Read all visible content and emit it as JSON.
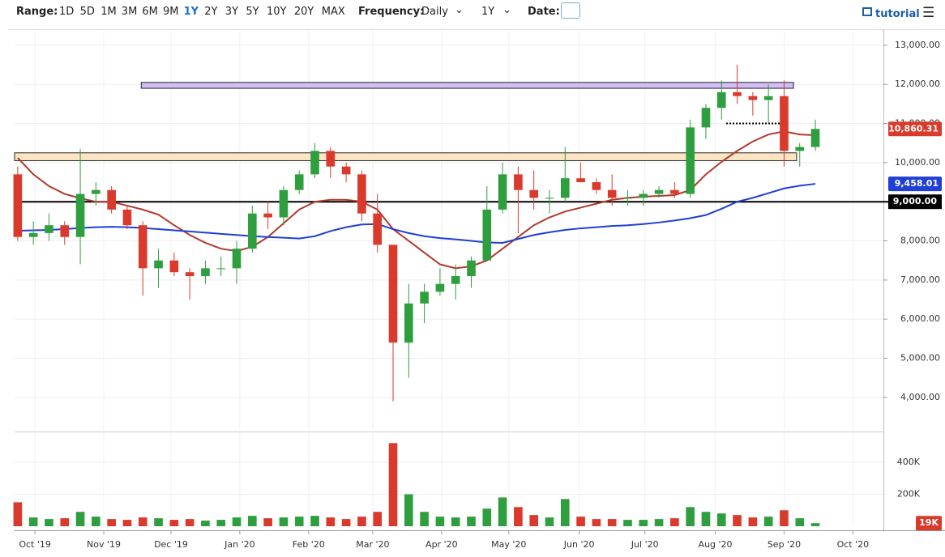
{
  "toolbar": {
    "range_label": "Range:",
    "ranges": [
      "1D",
      "5D",
      "1M",
      "3M",
      "6M",
      "9M",
      "1Y",
      "2Y",
      "3Y",
      "5Y",
      "10Y",
      "20Y",
      "MAX"
    ],
    "selected_range": "1Y",
    "frequency_label": "Frequency:",
    "frequency": "Daily",
    "period": "1Y",
    "date_label": "Date:",
    "tutorial": "tutorial"
  },
  "chart_data": {
    "type": "candlestick",
    "x": [
      0,
      1,
      2,
      3,
      4,
      5,
      6,
      7,
      8,
      9,
      10,
      11,
      12,
      13,
      14,
      15,
      16,
      17,
      18,
      19,
      20,
      21,
      22,
      23,
      24,
      25,
      26,
      27,
      28,
      29,
      30,
      31,
      32,
      33,
      34,
      35,
      36,
      37,
      38,
      39,
      40,
      41,
      42,
      43,
      44,
      45,
      46,
      47,
      48,
      49,
      50,
      51
    ],
    "open": [
      9700,
      8100,
      8200,
      8400,
      8100,
      9200,
      9300,
      8800,
      8400,
      7300,
      7500,
      7200,
      7100,
      7300,
      7300,
      7800,
      8700,
      8600,
      9300,
      9700,
      10300,
      9900,
      9700,
      8700,
      7900,
      5400,
      6400,
      6700,
      6900,
      7100,
      7500,
      8800,
      9700,
      9300,
      9100,
      9100,
      9600,
      9500,
      9300,
      9100,
      9100,
      9200,
      9300,
      9200,
      10900,
      11400,
      11800,
      11700,
      11600,
      11700,
      10300,
      10400
    ],
    "high": [
      9900,
      8500,
      8700,
      8500,
      10350,
      9500,
      9400,
      8900,
      8500,
      7800,
      7700,
      7300,
      7500,
      7600,
      8000,
      8900,
      9000,
      9400,
      9800,
      10500,
      10400,
      10000,
      9800,
      9200,
      7900,
      6900,
      6900,
      7300,
      7400,
      7600,
      9400,
      10000,
      9900,
      9800,
      9300,
      10400,
      10000,
      9600,
      9700,
      9300,
      9300,
      9400,
      9500,
      11100,
      11500,
      12100,
      12500,
      11800,
      12000,
      12100,
      10500,
      11100
    ],
    "low": [
      8000,
      7900,
      8000,
      7900,
      7400,
      8900,
      8700,
      8300,
      6600,
      6800,
      7100,
      6500,
      6900,
      7100,
      6900,
      7700,
      8300,
      8400,
      9200,
      9600,
      9600,
      9500,
      8500,
      7700,
      3900,
      4500,
      5900,
      6600,
      6500,
      6800,
      7500,
      8700,
      8200,
      8800,
      8700,
      9000,
      9500,
      9200,
      8900,
      8900,
      8900,
      9100,
      9100,
      9100,
      10600,
      11100,
      11500,
      11200,
      11000,
      9900,
      9900,
      10300
    ],
    "close": [
      8100,
      8200,
      8400,
      8100,
      9200,
      9300,
      8800,
      8400,
      7300,
      7500,
      7200,
      7100,
      7300,
      7300,
      7800,
      8700,
      8600,
      9300,
      9700,
      10300,
      9900,
      9700,
      8700,
      7900,
      5400,
      6400,
      6700,
      6900,
      7100,
      7500,
      8800,
      9700,
      9300,
      9100,
      9100,
      9600,
      9500,
      9300,
      9100,
      9100,
      9200,
      9300,
      9200,
      10900,
      11400,
      11800,
      11700,
      11600,
      11700,
      10300,
      10400,
      10860.31
    ],
    "volume": [
      150000,
      55000,
      45000,
      50000,
      90000,
      60000,
      45000,
      40000,
      55000,
      50000,
      40000,
      45000,
      35000,
      40000,
      55000,
      65000,
      50000,
      55000,
      60000,
      65000,
      55000,
      45000,
      60000,
      90000,
      520000,
      200000,
      90000,
      60000,
      55000,
      60000,
      110000,
      180000,
      120000,
      70000,
      55000,
      170000,
      60000,
      45000,
      45000,
      40000,
      40000,
      45000,
      50000,
      120000,
      90000,
      80000,
      70000,
      55000,
      60000,
      100000,
      50000,
      19000
    ],
    "last_volume_label": "19K",
    "last_close_label": "10,860.31",
    "ma_lines": [
      {
        "color": "#b03a2e",
        "values": [
          10120,
          9700,
          9400,
          9200,
          9090,
          9000,
          9000,
          8900,
          8800,
          8670,
          8400,
          8150,
          7950,
          7800,
          7740,
          7850,
          8100,
          8450,
          8800,
          9000,
          9050,
          9050,
          9000,
          8800,
          8300,
          8000,
          7700,
          7400,
          7300,
          7350,
          7500,
          7800,
          8100,
          8400,
          8600,
          8750,
          8850,
          8950,
          9050,
          9100,
          9130,
          9150,
          9170,
          9300,
          9700,
          10020,
          10300,
          10540,
          10720,
          10800,
          10720,
          10700
        ]
      },
      {
        "color": "#1f3fd6",
        "values": [
          8260,
          8270,
          8280,
          8300,
          8330,
          8350,
          8360,
          8350,
          8330,
          8300,
          8270,
          8240,
          8210,
          8180,
          8150,
          8120,
          8100,
          8080,
          8060,
          8120,
          8250,
          8350,
          8420,
          8430,
          8300,
          8200,
          8120,
          8070,
          8040,
          8000,
          7960,
          7950,
          8050,
          8150,
          8220,
          8280,
          8320,
          8350,
          8380,
          8400,
          8430,
          8470,
          8520,
          8580,
          8660,
          8820,
          9000,
          9100,
          9220,
          9340,
          9410,
          9458.01
        ],
        "last_label": "9,458.01"
      }
    ],
    "zones": [
      {
        "xlim": [
          7.9,
          49.6
        ],
        "ylim": [
          11900,
          12050
        ],
        "color": "#d2bdf7"
      },
      {
        "xlim": [
          -0.2,
          49.8
        ],
        "ylim": [
          10050,
          10250
        ],
        "color": "#fde5c4"
      }
    ],
    "hlines": [
      {
        "value": 9000,
        "label": "9,000.00",
        "color": "#000000"
      }
    ],
    "dotted": {
      "xlim": [
        45.3,
        48.9
      ],
      "value": 11000
    },
    "up_color": "#2e9e3e",
    "down_color": "#d93a2b",
    "xlim": [
      -0.2,
      55.35
    ],
    "ylim": [
      3190,
      13370
    ],
    "vol_ylim": [
      0,
      557000
    ],
    "xticks": [
      {
        "value": 1.1,
        "label": "Oct '19"
      },
      {
        "value": 5.5,
        "label": "Nov '19"
      },
      {
        "value": 9.8,
        "label": "Dec '19"
      },
      {
        "value": 14.2,
        "label": "Jan '20"
      },
      {
        "value": 18.6,
        "label": "Feb '20"
      },
      {
        "value": 22.7,
        "label": "Mar '20"
      },
      {
        "value": 27.1,
        "label": "Apr '20"
      },
      {
        "value": 31.4,
        "label": "May '20"
      },
      {
        "value": 35.9,
        "label": "Jun '20"
      },
      {
        "value": 40.1,
        "label": "Jul '20"
      },
      {
        "value": 44.6,
        "label": "Aug '20"
      },
      {
        "value": 49,
        "label": "Sep '20"
      },
      {
        "value": 53.4,
        "label": "Oct '20"
      }
    ],
    "yticks": [
      {
        "value": 4000,
        "label": "4,000.00"
      },
      {
        "value": 5000,
        "label": "5,000.00"
      },
      {
        "value": 6000,
        "label": "6,000.00"
      },
      {
        "value": 7000,
        "label": "7,000.00"
      },
      {
        "value": 8000,
        "label": "8,000.00"
      },
      {
        "value": 9000,
        "label": "9,000.00"
      },
      {
        "value": 10000,
        "label": "10,000.00"
      },
      {
        "value": 11000,
        "label": "11,000.00"
      },
      {
        "value": 12000,
        "label": "12,000.00"
      },
      {
        "value": 13000,
        "label": "13,000.00"
      }
    ],
    "vol_yticks": [
      {
        "value": 200000,
        "label": "200K"
      },
      {
        "value": 400000,
        "label": "400K"
      }
    ],
    "grid": true
  }
}
